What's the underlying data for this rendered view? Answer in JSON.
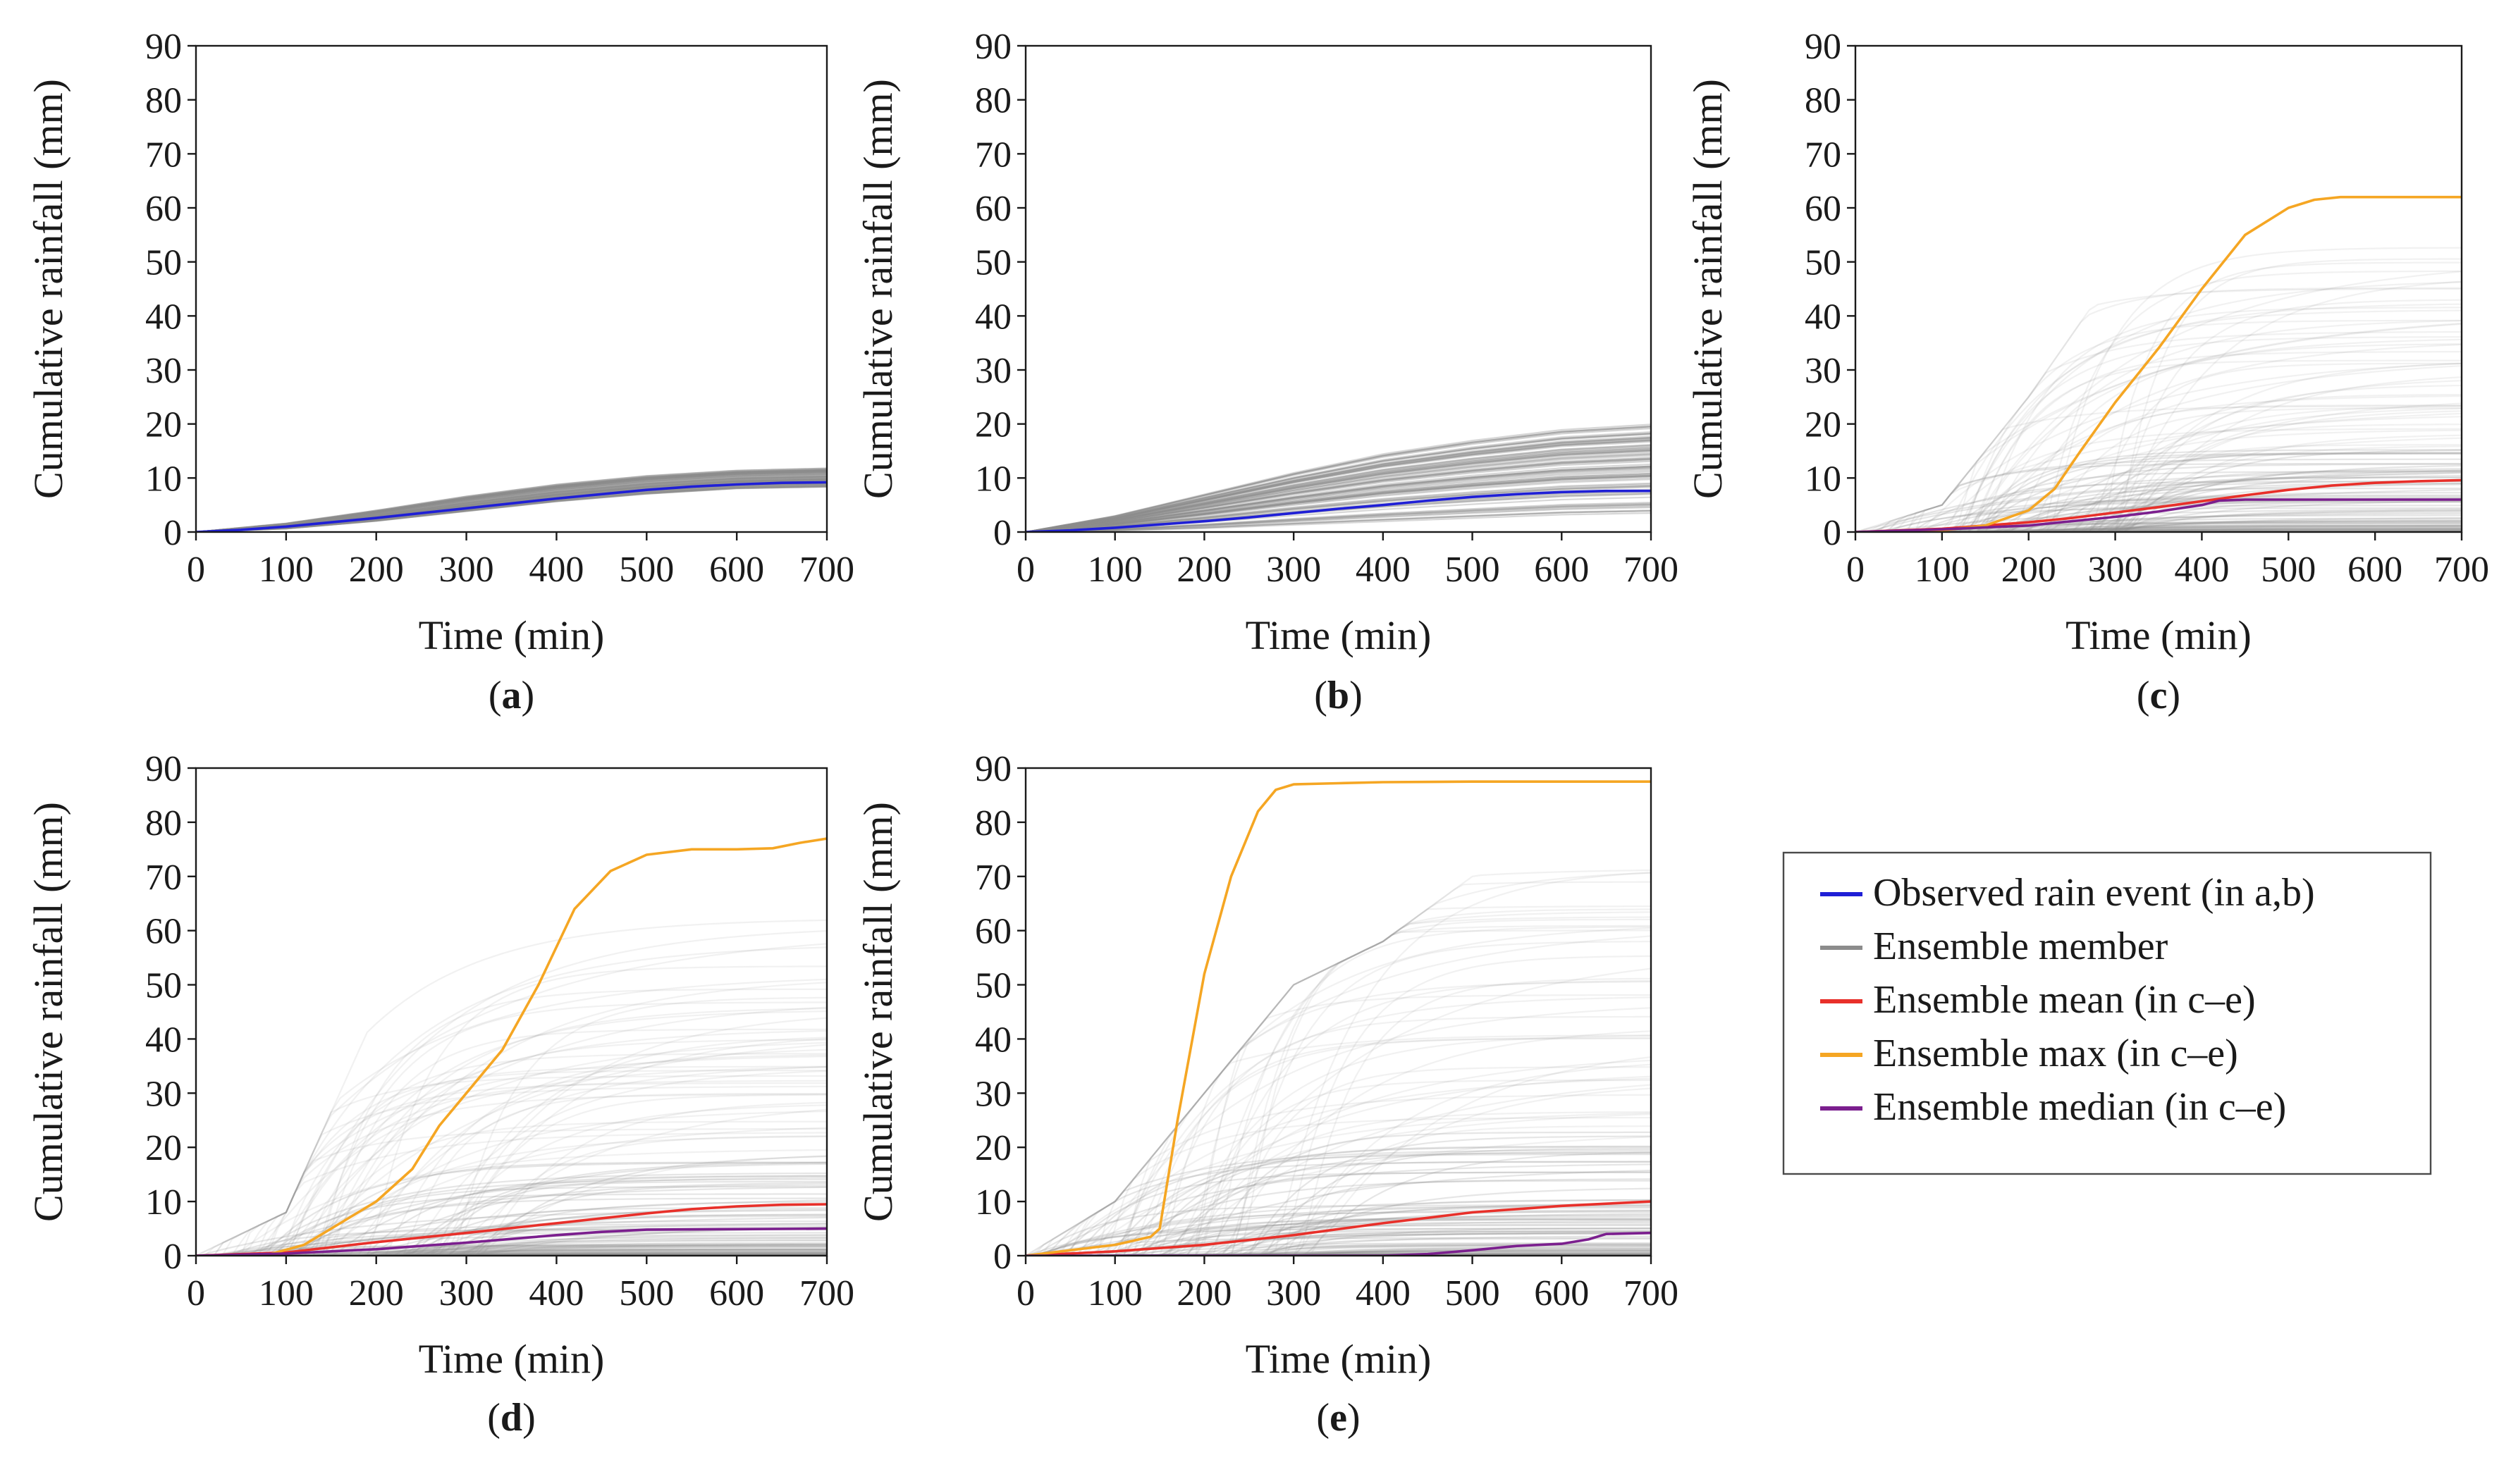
{
  "legend": {
    "entries": [
      {
        "label": "Observed rain event (in a,b)",
        "color": "#1f1fd6"
      },
      {
        "label": "Ensemble member",
        "color": "#8c8c8c"
      },
      {
        "label": "Ensemble mean (in c–e)",
        "color": "#e8302a"
      },
      {
        "label": "Ensemble max (in c–e)",
        "color": "#f5a623"
      },
      {
        "label": "Ensemble median (in c–e)",
        "color": "#7b1f8e"
      }
    ]
  },
  "chart_data": [
    {
      "type": "line",
      "panel_label": "a",
      "xlabel": "Time (min)",
      "ylabel": "Cumulative rainfall (mm)",
      "xlim": [
        0,
        700
      ],
      "ylim": [
        0,
        90
      ],
      "xticks": [
        0,
        100,
        200,
        300,
        400,
        500,
        600,
        700
      ],
      "yticks": [
        0,
        10,
        20,
        30,
        40,
        50,
        60,
        70,
        80,
        90
      ],
      "grid": false,
      "ensemble_envelope": {
        "x": [
          0,
          100,
          200,
          300,
          400,
          500,
          600,
          700
        ],
        "lower": [
          0,
          0.6,
          2.0,
          3.8,
          5.6,
          7.0,
          8.0,
          8.3
        ],
        "upper": [
          0,
          1.6,
          4.0,
          6.6,
          8.8,
          10.4,
          11.4,
          11.8
        ]
      },
      "series": [
        {
          "name": "Observed rain event (in a,b)",
          "color": "#1f1fd6",
          "x": [
            0,
            50,
            100,
            150,
            200,
            250,
            300,
            350,
            400,
            450,
            500,
            550,
            600,
            650,
            700
          ],
          "y": [
            0,
            0.4,
            1.0,
            1.8,
            2.6,
            3.5,
            4.4,
            5.3,
            6.2,
            7.0,
            7.8,
            8.4,
            8.8,
            9.1,
            9.2
          ]
        }
      ]
    },
    {
      "type": "line",
      "panel_label": "b",
      "xlabel": "Time (min)",
      "ylabel": "Cumulative rainfall (mm)",
      "xlim": [
        0,
        700
      ],
      "ylim": [
        0,
        90
      ],
      "xticks": [
        0,
        100,
        200,
        300,
        400,
        500,
        600,
        700
      ],
      "yticks": [
        0,
        10,
        20,
        30,
        40,
        50,
        60,
        70,
        80,
        90
      ],
      "grid": false,
      "ensemble_envelope": {
        "x": [
          0,
          100,
          200,
          300,
          400,
          500,
          600,
          700
        ],
        "lower": [
          0,
          0.2,
          0.6,
          1.2,
          1.8,
          2.4,
          3.0,
          3.3
        ],
        "upper": [
          0,
          3.0,
          7.0,
          11.0,
          14.5,
          17.0,
          19.0,
          20.0
        ]
      },
      "series": [
        {
          "name": "Observed rain event (in a,b)",
          "color": "#1f1fd6",
          "x": [
            0,
            50,
            100,
            150,
            200,
            250,
            300,
            350,
            400,
            450,
            500,
            550,
            600,
            650,
            700
          ],
          "y": [
            0,
            0.3,
            0.8,
            1.4,
            2.0,
            2.7,
            3.5,
            4.3,
            5.0,
            5.8,
            6.5,
            7.0,
            7.4,
            7.6,
            7.6
          ]
        }
      ]
    },
    {
      "type": "line",
      "panel_label": "c",
      "xlabel": "Time (min)",
      "ylabel": "Cumulative rainfall (mm)",
      "xlim": [
        0,
        700
      ],
      "ylim": [
        0,
        90
      ],
      "xticks": [
        0,
        100,
        200,
        300,
        400,
        500,
        600,
        700
      ],
      "yticks": [
        0,
        10,
        20,
        30,
        40,
        50,
        60,
        70,
        80,
        90
      ],
      "grid": false,
      "ensemble_envelope": {
        "x": [
          0,
          100,
          200,
          300,
          400,
          500,
          600,
          700
        ],
        "lower": [
          0,
          0,
          0,
          0.5,
          1.0,
          1.5,
          2.0,
          2.0
        ],
        "upper": [
          0,
          5,
          25,
          48,
          52,
          53,
          53,
          53
        ]
      },
      "series": [
        {
          "name": "Ensemble mean (in c–e)",
          "color": "#e8302a",
          "x": [
            0,
            100,
            200,
            250,
            300,
            350,
            400,
            450,
            500,
            550,
            600,
            650,
            700
          ],
          "y": [
            0,
            0.6,
            1.8,
            2.6,
            3.6,
            4.6,
            5.7,
            6.8,
            7.8,
            8.6,
            9.1,
            9.4,
            9.6
          ]
        },
        {
          "name": "Ensemble max (in c–e)",
          "color": "#f5a623",
          "x": [
            0,
            100,
            150,
            200,
            230,
            260,
            300,
            350,
            400,
            450,
            500,
            530,
            560,
            600,
            650,
            700
          ],
          "y": [
            0,
            0.3,
            1.2,
            4.0,
            8.0,
            15.0,
            24.0,
            34.0,
            45.0,
            55.0,
            60.0,
            61.5,
            62.0,
            62.0,
            62.0,
            62.0
          ]
        },
        {
          "name": "Ensemble median (in c–e)",
          "color": "#7b1f8e",
          "x": [
            0,
            100,
            200,
            300,
            350,
            400,
            420,
            450,
            500,
            600,
            700
          ],
          "y": [
            0,
            0.5,
            1.2,
            2.8,
            3.8,
            5.0,
            5.8,
            6.0,
            6.0,
            6.0,
            6.0
          ]
        }
      ]
    },
    {
      "type": "line",
      "panel_label": "d",
      "xlabel": "Time (min)",
      "ylabel": "Cumulative rainfall (mm)",
      "xlim": [
        0,
        700
      ],
      "ylim": [
        0,
        90
      ],
      "xticks": [
        0,
        100,
        200,
        300,
        400,
        500,
        600,
        700
      ],
      "yticks": [
        0,
        10,
        20,
        30,
        40,
        50,
        60,
        70,
        80,
        90
      ],
      "grid": false,
      "ensemble_envelope": {
        "x": [
          0,
          100,
          200,
          300,
          400,
          500,
          600,
          700
        ],
        "lower": [
          0,
          0,
          0,
          0.5,
          1.0,
          1.5,
          2.0,
          2.0
        ],
        "upper": [
          0,
          8,
          45,
          63,
          64,
          64,
          64,
          64
        ]
      },
      "series": [
        {
          "name": "Ensemble mean (in c–e)",
          "color": "#e8302a",
          "x": [
            0,
            100,
            200,
            300,
            400,
            500,
            550,
            600,
            650,
            700
          ],
          "y": [
            0,
            0.6,
            2.5,
            4.2,
            6.0,
            7.8,
            8.6,
            9.1,
            9.4,
            9.5
          ]
        },
        {
          "name": "Ensemble max (in c–e)",
          "color": "#f5a623",
          "x": [
            0,
            80,
            120,
            150,
            180,
            200,
            240,
            270,
            300,
            340,
            380,
            420,
            460,
            500,
            550,
            600,
            640,
            670,
            700
          ],
          "y": [
            0,
            0.2,
            2.0,
            5.0,
            8.0,
            10.0,
            16.0,
            24.0,
            30.0,
            38.0,
            50.0,
            64.0,
            71.0,
            74.0,
            75.0,
            75.0,
            75.2,
            76.2,
            77.0
          ]
        },
        {
          "name": "Ensemble median (in c–e)",
          "color": "#7b1f8e",
          "x": [
            0,
            100,
            200,
            300,
            400,
            450,
            500,
            600,
            700
          ],
          "y": [
            0,
            0.4,
            1.2,
            2.4,
            3.8,
            4.4,
            4.8,
            4.9,
            5.0
          ]
        }
      ]
    },
    {
      "type": "line",
      "panel_label": "e",
      "xlabel": "Time (min)",
      "ylabel": "Cumulative rainfall (mm)",
      "xlim": [
        0,
        700
      ],
      "ylim": [
        0,
        90
      ],
      "xticks": [
        0,
        100,
        200,
        300,
        400,
        500,
        600,
        700
      ],
      "yticks": [
        0,
        10,
        20,
        30,
        40,
        50,
        60,
        70,
        80,
        90
      ],
      "grid": false,
      "ensemble_envelope": {
        "x": [
          0,
          100,
          200,
          300,
          400,
          500,
          600,
          700
        ],
        "lower": [
          0,
          0,
          0,
          0.5,
          1.0,
          1.5,
          2.0,
          2.0
        ],
        "upper": [
          0,
          10,
          30,
          50,
          58,
          70,
          74,
          76
        ]
      },
      "series": [
        {
          "name": "Ensemble mean (in c–e)",
          "color": "#e8302a",
          "x": [
            0,
            100,
            200,
            300,
            400,
            500,
            600,
            650,
            700
          ],
          "y": [
            0,
            0.8,
            2.0,
            3.8,
            6.0,
            8.0,
            9.2,
            9.6,
            10.0
          ]
        },
        {
          "name": "Ensemble max (in c–e)",
          "color": "#f5a623",
          "x": [
            0,
            100,
            140,
            150,
            170,
            200,
            230,
            260,
            280,
            300,
            350,
            400,
            500,
            600,
            700
          ],
          "y": [
            0,
            2.0,
            3.5,
            5.0,
            25.0,
            52.0,
            70.0,
            82.0,
            86.0,
            87.0,
            87.2,
            87.4,
            87.5,
            87.5,
            87.5
          ]
        },
        {
          "name": "Ensemble median (in c–e)",
          "color": "#7b1f8e",
          "x": [
            0,
            100,
            200,
            300,
            400,
            450,
            500,
            550,
            600,
            630,
            650,
            700
          ],
          "y": [
            0,
            0,
            0,
            0,
            0,
            0.3,
            1.0,
            1.8,
            2.2,
            3.0,
            4.0,
            4.2
          ]
        }
      ]
    }
  ]
}
